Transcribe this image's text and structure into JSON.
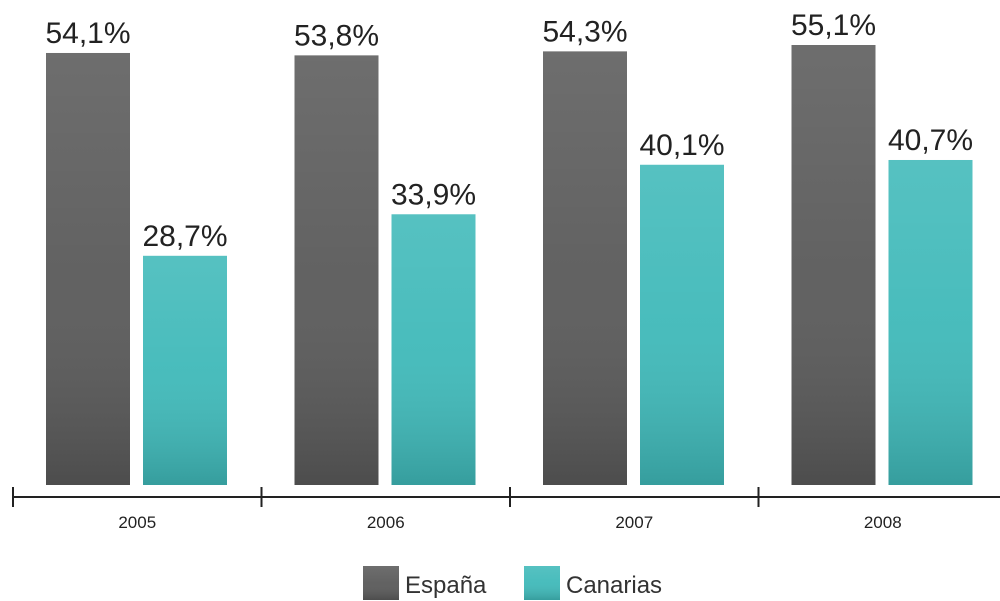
{
  "chart_data": {
    "type": "bar",
    "categories": [
      "2005",
      "2006",
      "2007",
      "2008"
    ],
    "series": [
      {
        "name": "España",
        "color": "#5a5a5a",
        "values": [
          54.1,
          53.8,
          54.3,
          55.1
        ],
        "value_labels": [
          "54,1%",
          "53,8%",
          "54,3%",
          "55,1%"
        ]
      },
      {
        "name": "Canarias",
        "color": "#3fb9b9",
        "values": [
          28.7,
          33.9,
          40.1,
          40.7
        ],
        "value_labels": [
          "28,7%",
          "33,9%",
          "40,1%",
          "40,7%"
        ]
      }
    ]
  }
}
